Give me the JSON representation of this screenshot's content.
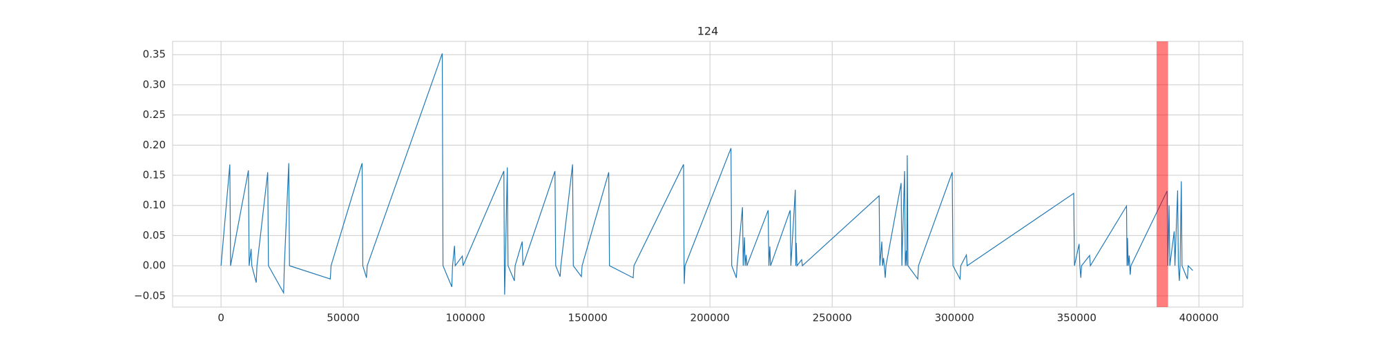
{
  "chart_data": {
    "type": "line",
    "title": "124",
    "x": [
      0,
      3600,
      3900,
      11200,
      11500,
      12300,
      12600,
      14400,
      14700,
      19100,
      19400,
      25600,
      25900,
      27700,
      28000,
      44700,
      45000,
      57700,
      58000,
      59500,
      59800,
      90500,
      90800,
      94400,
      94700,
      95500,
      95800,
      98700,
      99000,
      115700,
      115900,
      116000,
      116300,
      117100,
      117400,
      120000,
      120300,
      123200,
      123500,
      136600,
      136900,
      138700,
      139000,
      143800,
      144100,
      147400,
      147700,
      158600,
      158900,
      168600,
      168900,
      189200,
      189400,
      189500,
      189800,
      208600,
      208900,
      210800,
      211100,
      213300,
      213600,
      214100,
      214400,
      214800,
      215100,
      223800,
      224100,
      224500,
      224800,
      232800,
      233100,
      234900,
      235100,
      235300,
      235600,
      237500,
      237800,
      269200,
      269500,
      270300,
      270600,
      271000,
      271300,
      271700,
      272000,
      278200,
      278500,
      279600,
      279900,
      280300,
      280500,
      280700,
      281000,
      285000,
      285300,
      299100,
      299400,
      302300,
      302600,
      304900,
      305200,
      348800,
      349100,
      351000,
      351300,
      351700,
      352000,
      355300,
      355600,
      370400,
      370600,
      370800,
      371100,
      371500,
      371700,
      371900,
      372200,
      387000,
      387300,
      387800,
      388100,
      389900,
      390200,
      391300,
      391600,
      392000,
      392300,
      392800,
      393100,
      395300,
      395600,
      397500
    ],
    "values": [
      0,
      0.168,
      0,
      0.158,
      0,
      0.028,
      0,
      -0.028,
      0,
      0.155,
      0,
      -0.045,
      0,
      0.17,
      0,
      -0.022,
      0,
      0.17,
      0,
      -0.02,
      0,
      0.352,
      0,
      -0.035,
      0,
      0.033,
      0,
      0.016,
      0,
      0.157,
      0,
      -0.048,
      0,
      0.163,
      0,
      -0.025,
      0,
      0.04,
      0,
      0.157,
      0,
      -0.018,
      0,
      0.168,
      0,
      -0.018,
      0,
      0.155,
      0,
      -0.02,
      0,
      0.168,
      0,
      -0.03,
      0,
      0.195,
      0,
      -0.02,
      0,
      0.097,
      0,
      0.047,
      0,
      0.018,
      0,
      0.092,
      0,
      0.032,
      0,
      0.092,
      0,
      0.126,
      0,
      0.038,
      0,
      0.01,
      0,
      0.116,
      0,
      0.04,
      0,
      0.013,
      0,
      -0.02,
      0,
      0.137,
      0,
      0.157,
      0,
      0.025,
      0,
      0.183,
      0,
      -0.022,
      0,
      0.155,
      0,
      -0.022,
      0,
      0.018,
      0,
      0.12,
      0,
      0.036,
      0,
      -0.02,
      0,
      0.017,
      0,
      0.099,
      0,
      0.046,
      0,
      0.017,
      0,
      -0.015,
      0,
      0.124,
      0,
      0.1,
      0,
      0.057,
      0,
      0.125,
      0,
      -0.025,
      0,
      0.14,
      0,
      -0.022,
      0,
      -0.008
    ],
    "color": "#1f77b4",
    "xlim": [
      -19800,
      418000
    ],
    "ylim": [
      -0.0685,
      0.372
    ],
    "xticks": [
      0,
      50000,
      100000,
      150000,
      200000,
      250000,
      300000,
      350000,
      400000
    ],
    "yticks": [
      {
        "value": -0.05,
        "label": "−0.05"
      },
      {
        "value": 0,
        "label": "0.00"
      },
      0.05,
      {
        "value": 0.1,
        "label": "0.10"
      },
      0.15,
      {
        "value": 0.2,
        "label": "0.20"
      },
      0.25,
      {
        "value": 0.3,
        "label": "0.30"
      },
      0.35
    ],
    "grid": true,
    "highlight_span": [
      382700,
      387400
    ],
    "highlight_color": "#ff0000",
    "highlight_alpha": 0.5
  }
}
